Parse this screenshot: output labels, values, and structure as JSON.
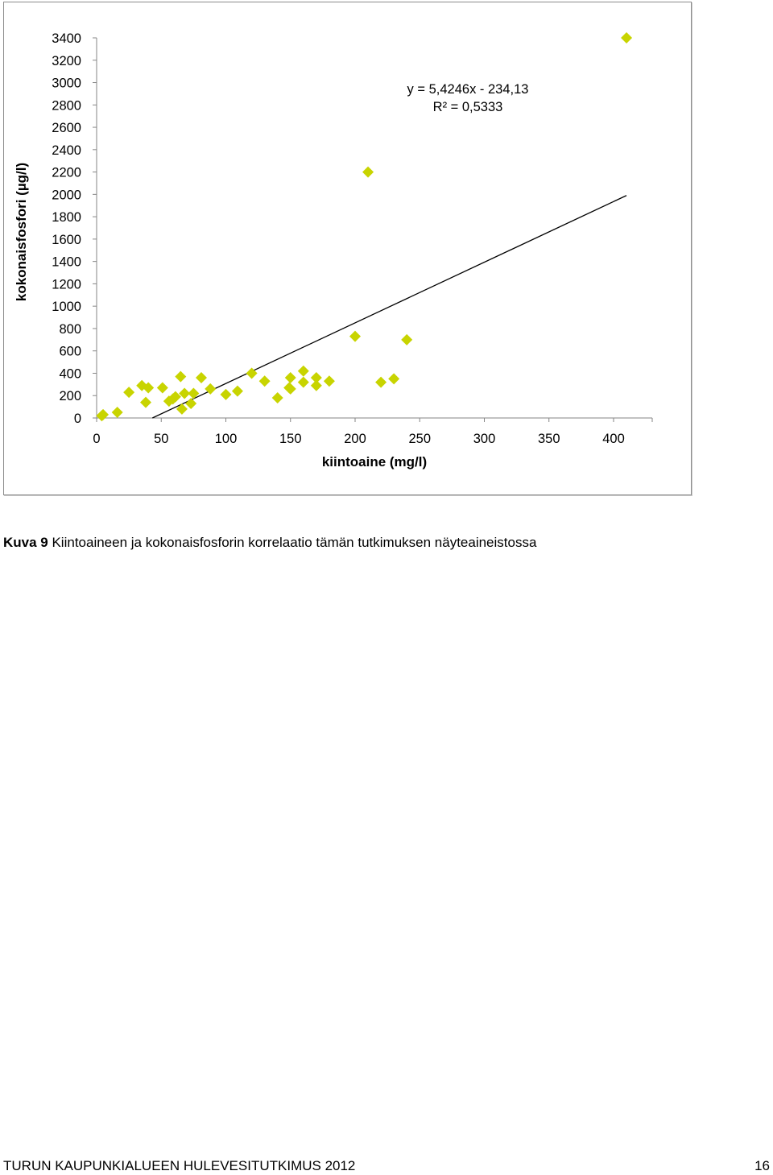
{
  "chart_data": {
    "type": "scatter",
    "xlabel": "kiintoaine (mg/l)",
    "ylabel": "kokonaisfosfori (µg/l)",
    "xlim": [
      0,
      400
    ],
    "ylim": [
      0,
      3400
    ],
    "x_ticks": [
      "0",
      "50",
      "100",
      "150",
      "200",
      "250",
      "300",
      "350",
      "400"
    ],
    "y_ticks": [
      "0",
      "200",
      "400",
      "600",
      "800",
      "1000",
      "1200",
      "1400",
      "1600",
      "1800",
      "2000",
      "2200",
      "2400",
      "2600",
      "2800",
      "3000",
      "3200",
      "3400"
    ],
    "grid": false,
    "marker": "diamond",
    "marker_color": "#c8d400",
    "trendline": {
      "slope": 5.4246,
      "intercept": -234.13,
      "x_range": [
        43.16,
        410
      ],
      "color": "#000000",
      "equation": "y = 5,4246x - 234,13",
      "r_squared": "R² = 0,5333"
    },
    "points": [
      {
        "x": 4,
        "y": 20
      },
      {
        "x": 5,
        "y": 30
      },
      {
        "x": 16,
        "y": 50
      },
      {
        "x": 25,
        "y": 230
      },
      {
        "x": 35,
        "y": 290
      },
      {
        "x": 38,
        "y": 140
      },
      {
        "x": 40,
        "y": 270
      },
      {
        "x": 51,
        "y": 270
      },
      {
        "x": 56,
        "y": 150
      },
      {
        "x": 59,
        "y": 170
      },
      {
        "x": 61,
        "y": 190
      },
      {
        "x": 65,
        "y": 370
      },
      {
        "x": 66,
        "y": 80
      },
      {
        "x": 68,
        "y": 220
      },
      {
        "x": 73,
        "y": 130
      },
      {
        "x": 75,
        "y": 220
      },
      {
        "x": 81,
        "y": 360
      },
      {
        "x": 88,
        "y": 260
      },
      {
        "x": 100,
        "y": 210
      },
      {
        "x": 109,
        "y": 240
      },
      {
        "x": 120,
        "y": 400
      },
      {
        "x": 130,
        "y": 330
      },
      {
        "x": 140,
        "y": 180
      },
      {
        "x": 149,
        "y": 270
      },
      {
        "x": 150,
        "y": 360
      },
      {
        "x": 150,
        "y": 260
      },
      {
        "x": 160,
        "y": 420
      },
      {
        "x": 160,
        "y": 320
      },
      {
        "x": 170,
        "y": 360
      },
      {
        "x": 170,
        "y": 290
      },
      {
        "x": 180,
        "y": 330
      },
      {
        "x": 200,
        "y": 730
      },
      {
        "x": 210,
        "y": 2200
      },
      {
        "x": 220,
        "y": 320
      },
      {
        "x": 230,
        "y": 350
      },
      {
        "x": 240,
        "y": 700
      },
      {
        "x": 410,
        "y": 3400
      }
    ]
  },
  "caption": {
    "label": "Kuva 9",
    "text": " Kiintoaineen ja kokonaisfosforin korrelaatio tämän tutkimuksen näyteaineistossa"
  },
  "footer": {
    "left": "TURUN KAUPUNKIALUEEN HULEVESITUTKIMUS 2012",
    "page_number": "16"
  }
}
